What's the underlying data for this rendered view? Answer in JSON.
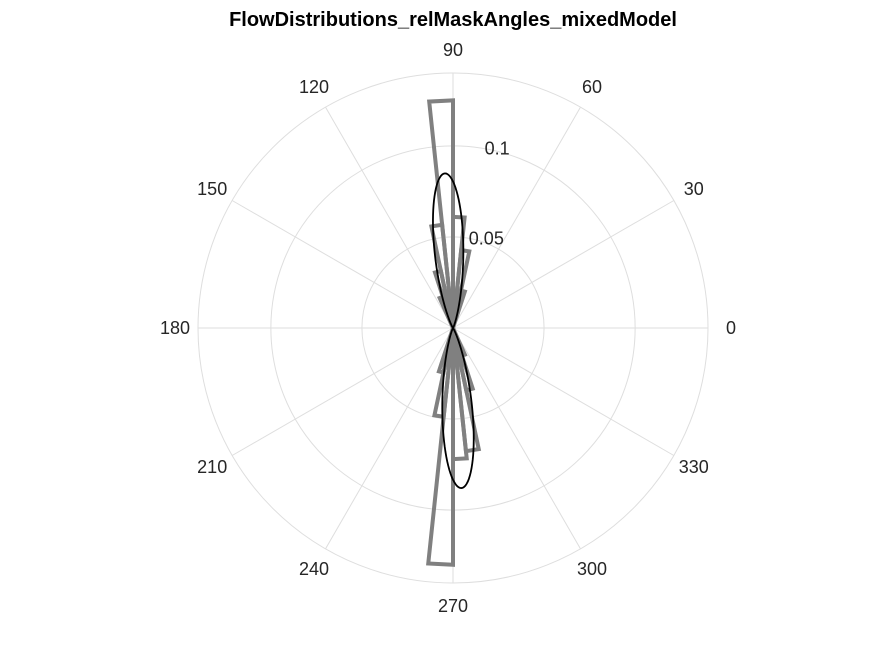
{
  "chart_data": {
    "type": "polar-histogram",
    "title": "FlowDistributions_relMaskAngles_mixedModel",
    "theta_unit": "degrees",
    "theta_ticks": [
      0,
      30,
      60,
      90,
      120,
      150,
      180,
      210,
      240,
      270,
      300,
      330
    ],
    "theta_tick_labels": [
      "0",
      "30",
      "60",
      "90",
      "120",
      "150",
      "180",
      "210",
      "240",
      "270",
      "300",
      "330"
    ],
    "r_lim": [
      0,
      0.14
    ],
    "r_ticks": [
      0.05,
      0.1
    ],
    "r_tick_labels": [
      "0.05",
      "0.1"
    ],
    "grid": true,
    "series": [
      {
        "style": "histogram-outline",
        "color": "#808080",
        "bin_width_deg": 6,
        "bins": [
          {
            "center": 93,
            "value": 0.125
          },
          {
            "center": 87,
            "value": 0.061
          },
          {
            "center": 99,
            "value": 0.057
          },
          {
            "center": 81,
            "value": 0.043
          },
          {
            "center": 105,
            "value": 0.032
          },
          {
            "center": 75,
            "value": 0.021
          },
          {
            "center": 111,
            "value": 0.018
          },
          {
            "center": 267,
            "value": 0.13
          },
          {
            "center": 273,
            "value": 0.072
          },
          {
            "center": 279,
            "value": 0.068
          },
          {
            "center": 261,
            "value": 0.049
          },
          {
            "center": 285,
            "value": 0.035
          },
          {
            "center": 255,
            "value": 0.025
          },
          {
            "center": 291,
            "value": 0.016
          }
        ]
      },
      {
        "style": "model-curve",
        "color": "#000000",
        "peak_1_deg": 93,
        "peak_1_value": 0.085,
        "peak_2_deg": 273,
        "peak_2_value": 0.088,
        "concentration": 40
      }
    ]
  }
}
